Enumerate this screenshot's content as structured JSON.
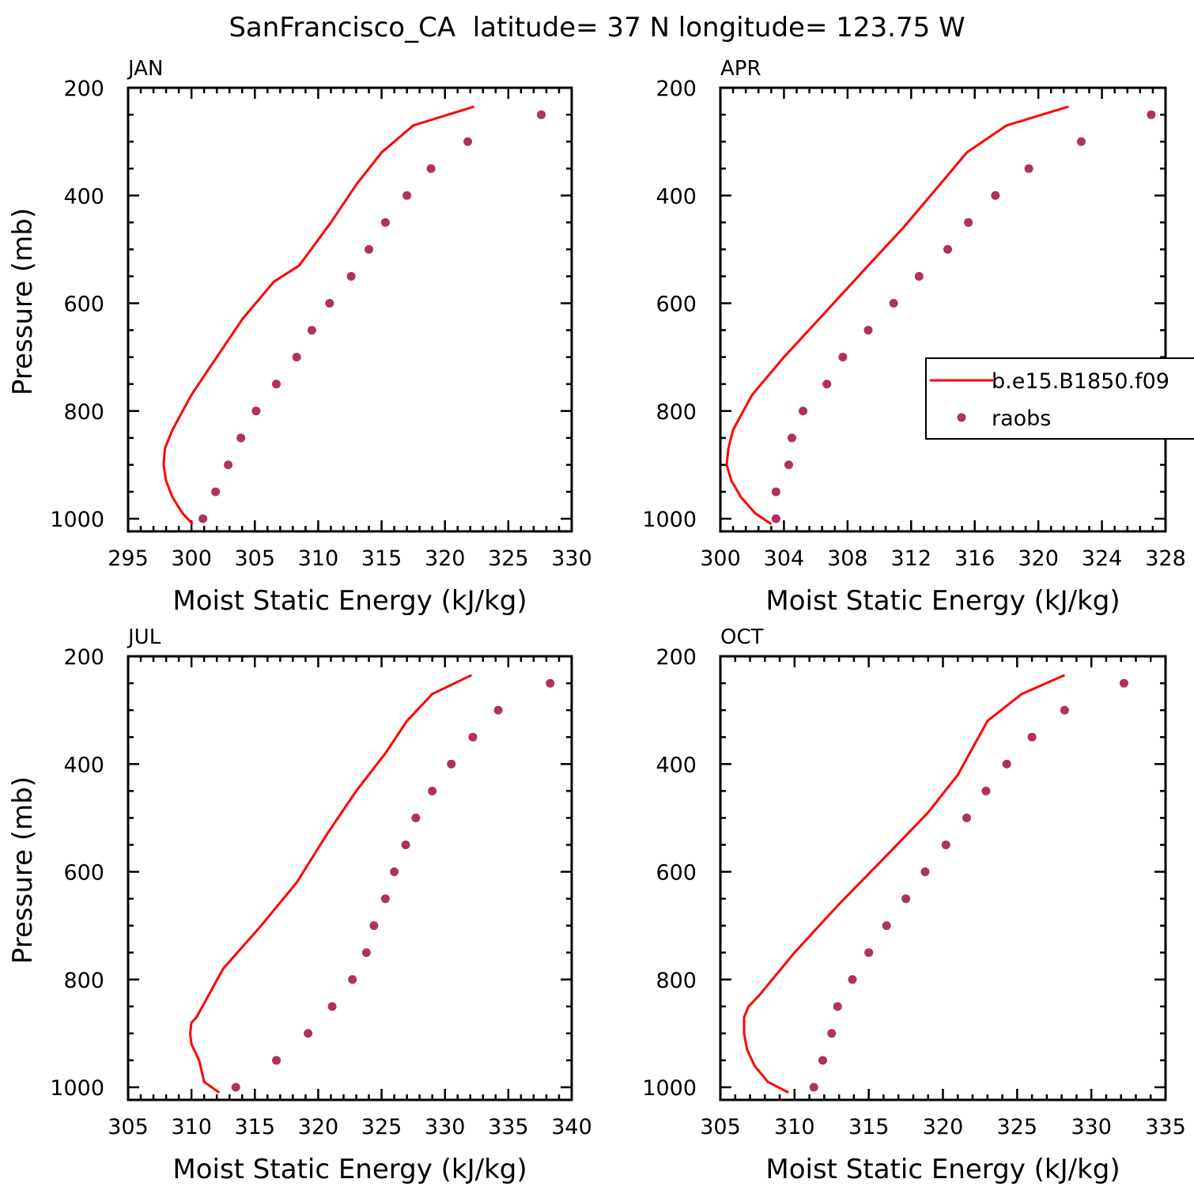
{
  "page_title": "SanFrancisco_CA  latitude= 37 N longitude= 123.75 W",
  "colors": {
    "model": "#ff0000",
    "obs": "#b03060",
    "axes": "#000000"
  },
  "legend": {
    "model_label": "b.e15.B1850.f09",
    "obs_label": "raobs"
  },
  "chart_data": [
    {
      "type": "line",
      "panel": "JAN",
      "title": "JAN",
      "xlabel": "Moist Static Energy (kJ/kg)",
      "ylabel": "Pressure (mb)",
      "xlim": [
        295,
        330
      ],
      "ylim": [
        1000,
        200
      ],
      "x_ticks": [
        295,
        300,
        305,
        310,
        315,
        320,
        325,
        330
      ],
      "y_ticks": [
        200,
        400,
        600,
        800,
        1000
      ],
      "legend_visible": false,
      "series": [
        {
          "name": "b.e15.B1850.f09",
          "kind": "line",
          "x": [
            300.1,
            299.3,
            298.5,
            298.0,
            297.8,
            297.9,
            298.5,
            300.0,
            302.0,
            304.0,
            306.5,
            308.5,
            311.0,
            313.0,
            315.0,
            317.5,
            322.3
          ],
          "y": [
            1010,
            990,
            960,
            930,
            900,
            870,
            835,
            770,
            700,
            630,
            560,
            530,
            450,
            380,
            320,
            270,
            235
          ]
        },
        {
          "name": "raobs",
          "kind": "scatter",
          "x": [
            300.9,
            301.9,
            302.9,
            303.9,
            305.1,
            306.7,
            308.3,
            309.5,
            310.9,
            312.6,
            314.0,
            315.3,
            317.0,
            318.9,
            321.8,
            327.6
          ],
          "y": [
            1000,
            950,
            900,
            850,
            800,
            750,
            700,
            650,
            600,
            550,
            500,
            450,
            400,
            350,
            300,
            250
          ]
        }
      ]
    },
    {
      "type": "line",
      "panel": "APR",
      "title": "APR",
      "xlabel": "Moist Static Energy (kJ/kg)",
      "ylabel": "",
      "xlim": [
        300,
        328
      ],
      "ylim": [
        1000,
        200
      ],
      "x_ticks": [
        300,
        304,
        308,
        312,
        316,
        320,
        324,
        328
      ],
      "y_ticks": [
        200,
        400,
        600,
        800,
        1000
      ],
      "legend_visible": true,
      "legend_position": "right",
      "series": [
        {
          "name": "b.e15.B1850.f09",
          "kind": "line",
          "x": [
            303.2,
            302.2,
            301.3,
            300.7,
            300.4,
            300.5,
            300.8,
            302.0,
            304.0,
            306.5,
            309.3,
            311.5,
            313.8,
            315.5,
            318.0,
            321.9
          ],
          "y": [
            1010,
            990,
            960,
            930,
            900,
            870,
            835,
            770,
            700,
            620,
            530,
            460,
            380,
            320,
            270,
            235
          ]
        },
        {
          "name": "raobs",
          "kind": "scatter",
          "x": [
            303.5,
            303.5,
            304.3,
            304.5,
            305.2,
            306.7,
            307.7,
            309.3,
            310.9,
            312.5,
            314.3,
            315.6,
            317.3,
            319.4,
            322.7,
            327.1
          ],
          "y": [
            1000,
            950,
            900,
            850,
            800,
            750,
            700,
            650,
            600,
            550,
            500,
            450,
            400,
            350,
            300,
            250
          ]
        }
      ]
    },
    {
      "type": "line",
      "panel": "JUL",
      "title": "JUL",
      "xlabel": "Moist Static Energy (kJ/kg)",
      "ylabel": "Pressure (mb)",
      "xlim": [
        305,
        340
      ],
      "ylim": [
        1000,
        200
      ],
      "x_ticks": [
        305,
        310,
        315,
        320,
        325,
        330,
        335,
        340
      ],
      "y_ticks": [
        200,
        400,
        600,
        800,
        1000
      ],
      "legend_visible": false,
      "series": [
        {
          "name": "b.e15.B1850.f09",
          "kind": "line",
          "x": [
            312.2,
            311.0,
            310.6,
            310.0,
            309.9,
            310.0,
            310.4,
            312.5,
            315.5,
            318.3,
            320.7,
            323.0,
            325.3,
            327.0,
            329.0,
            332.1
          ],
          "y": [
            1010,
            990,
            950,
            920,
            900,
            880,
            870,
            780,
            700,
            620,
            530,
            450,
            380,
            320,
            270,
            235
          ]
        },
        {
          "name": "raobs",
          "kind": "scatter",
          "x": [
            313.5,
            316.7,
            319.2,
            321.1,
            322.7,
            323.8,
            324.4,
            325.3,
            326.0,
            326.9,
            327.7,
            329.0,
            330.5,
            332.2,
            334.2,
            338.3
          ],
          "y": [
            1000,
            950,
            900,
            850,
            800,
            750,
            700,
            650,
            600,
            550,
            500,
            450,
            400,
            350,
            300,
            250
          ]
        }
      ]
    },
    {
      "type": "line",
      "panel": "OCT",
      "title": "OCT",
      "xlabel": "Moist Static Energy (kJ/kg)",
      "ylabel": "",
      "xlim": [
        305,
        335
      ],
      "ylim": [
        1000,
        200
      ],
      "x_ticks": [
        305,
        310,
        315,
        320,
        325,
        330,
        335
      ],
      "y_ticks": [
        200,
        400,
        600,
        800,
        1000
      ],
      "legend_visible": false,
      "series": [
        {
          "name": "b.e15.B1850.f09",
          "kind": "line",
          "x": [
            309.6,
            308.2,
            307.3,
            306.8,
            306.6,
            306.6,
            306.9,
            307.6,
            310.0,
            313.0,
            316.2,
            319.0,
            321.0,
            323.0,
            325.3,
            328.2
          ],
          "y": [
            1010,
            990,
            960,
            930,
            900,
            870,
            850,
            830,
            750,
            660,
            570,
            490,
            420,
            320,
            270,
            235
          ]
        },
        {
          "name": "raobs",
          "kind": "scatter",
          "x": [
            311.3,
            311.9,
            312.5,
            312.9,
            313.9,
            315.0,
            316.2,
            317.5,
            318.8,
            320.2,
            321.6,
            322.9,
            324.3,
            326.0,
            328.2,
            332.2
          ],
          "y": [
            1000,
            950,
            900,
            850,
            800,
            750,
            700,
            650,
            600,
            550,
            500,
            450,
            400,
            350,
            300,
            250
          ]
        }
      ]
    }
  ]
}
